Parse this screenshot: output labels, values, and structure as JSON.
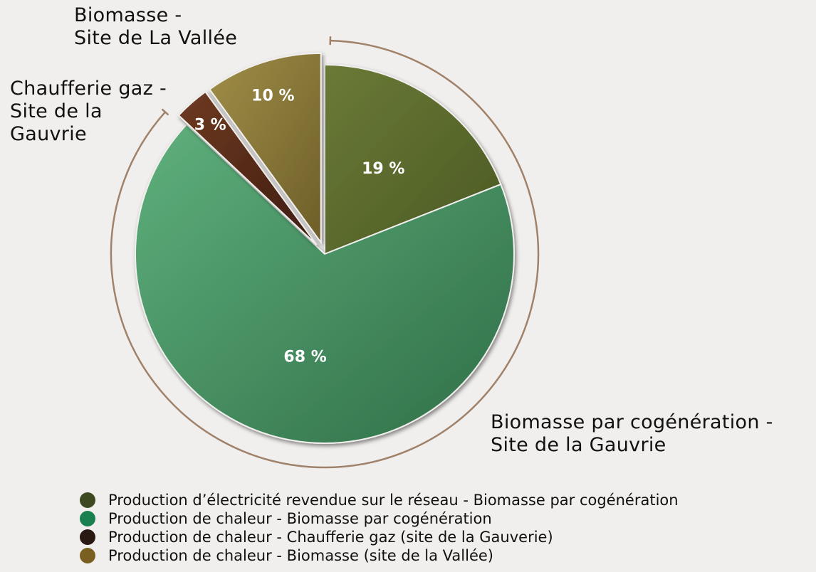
{
  "chart_data": {
    "type": "pie",
    "title": "",
    "slices": [
      {
        "label": "19 %",
        "value": 19,
        "color": "#5a6a2c",
        "color_light": "#6b7a36",
        "color_dark": "#4a5a24",
        "exploded": false
      },
      {
        "label": "68 %",
        "value": 68,
        "color": "#4a9a68",
        "color_light": "#5fb07c",
        "color_dark": "#2f6e47",
        "exploded": false
      },
      {
        "label": "3 %",
        "value": 3,
        "color": "#5c2e1a",
        "color_light": "#6e3a22",
        "color_dark": "#3e1c0f",
        "exploded": true
      },
      {
        "label": "10 %",
        "value": 10,
        "color": "#8a7a3a",
        "color_light": "#a08e48",
        "color_dark": "#6d5e28",
        "exploded": true
      }
    ],
    "legend": [
      {
        "label": "Production d’électricité revendue sur le réseau - Biomasse par cogénération",
        "color": "#3d4a1f"
      },
      {
        "label": "Production de chaleur - Biomasse par cogénération",
        "color": "#1a8050"
      },
      {
        "label": "Production de chaleur - Chaufferie gaz (site de la Gauverie)",
        "color": "#2a1812"
      },
      {
        "label": "Production de chaleur - Biomasse  (site de la Vallée)",
        "color": "#7a6020"
      }
    ],
    "legend_position": "bottom",
    "callouts": {
      "cogeneration": "Biomasse par cogénération -\nSite de la Gauvrie",
      "gaz": "Chaufferie gaz -\nSite de la\nGauvrie",
      "vallee": "Biomasse -\nSite de La Vallée"
    },
    "arc_color": "#a0826a"
  }
}
